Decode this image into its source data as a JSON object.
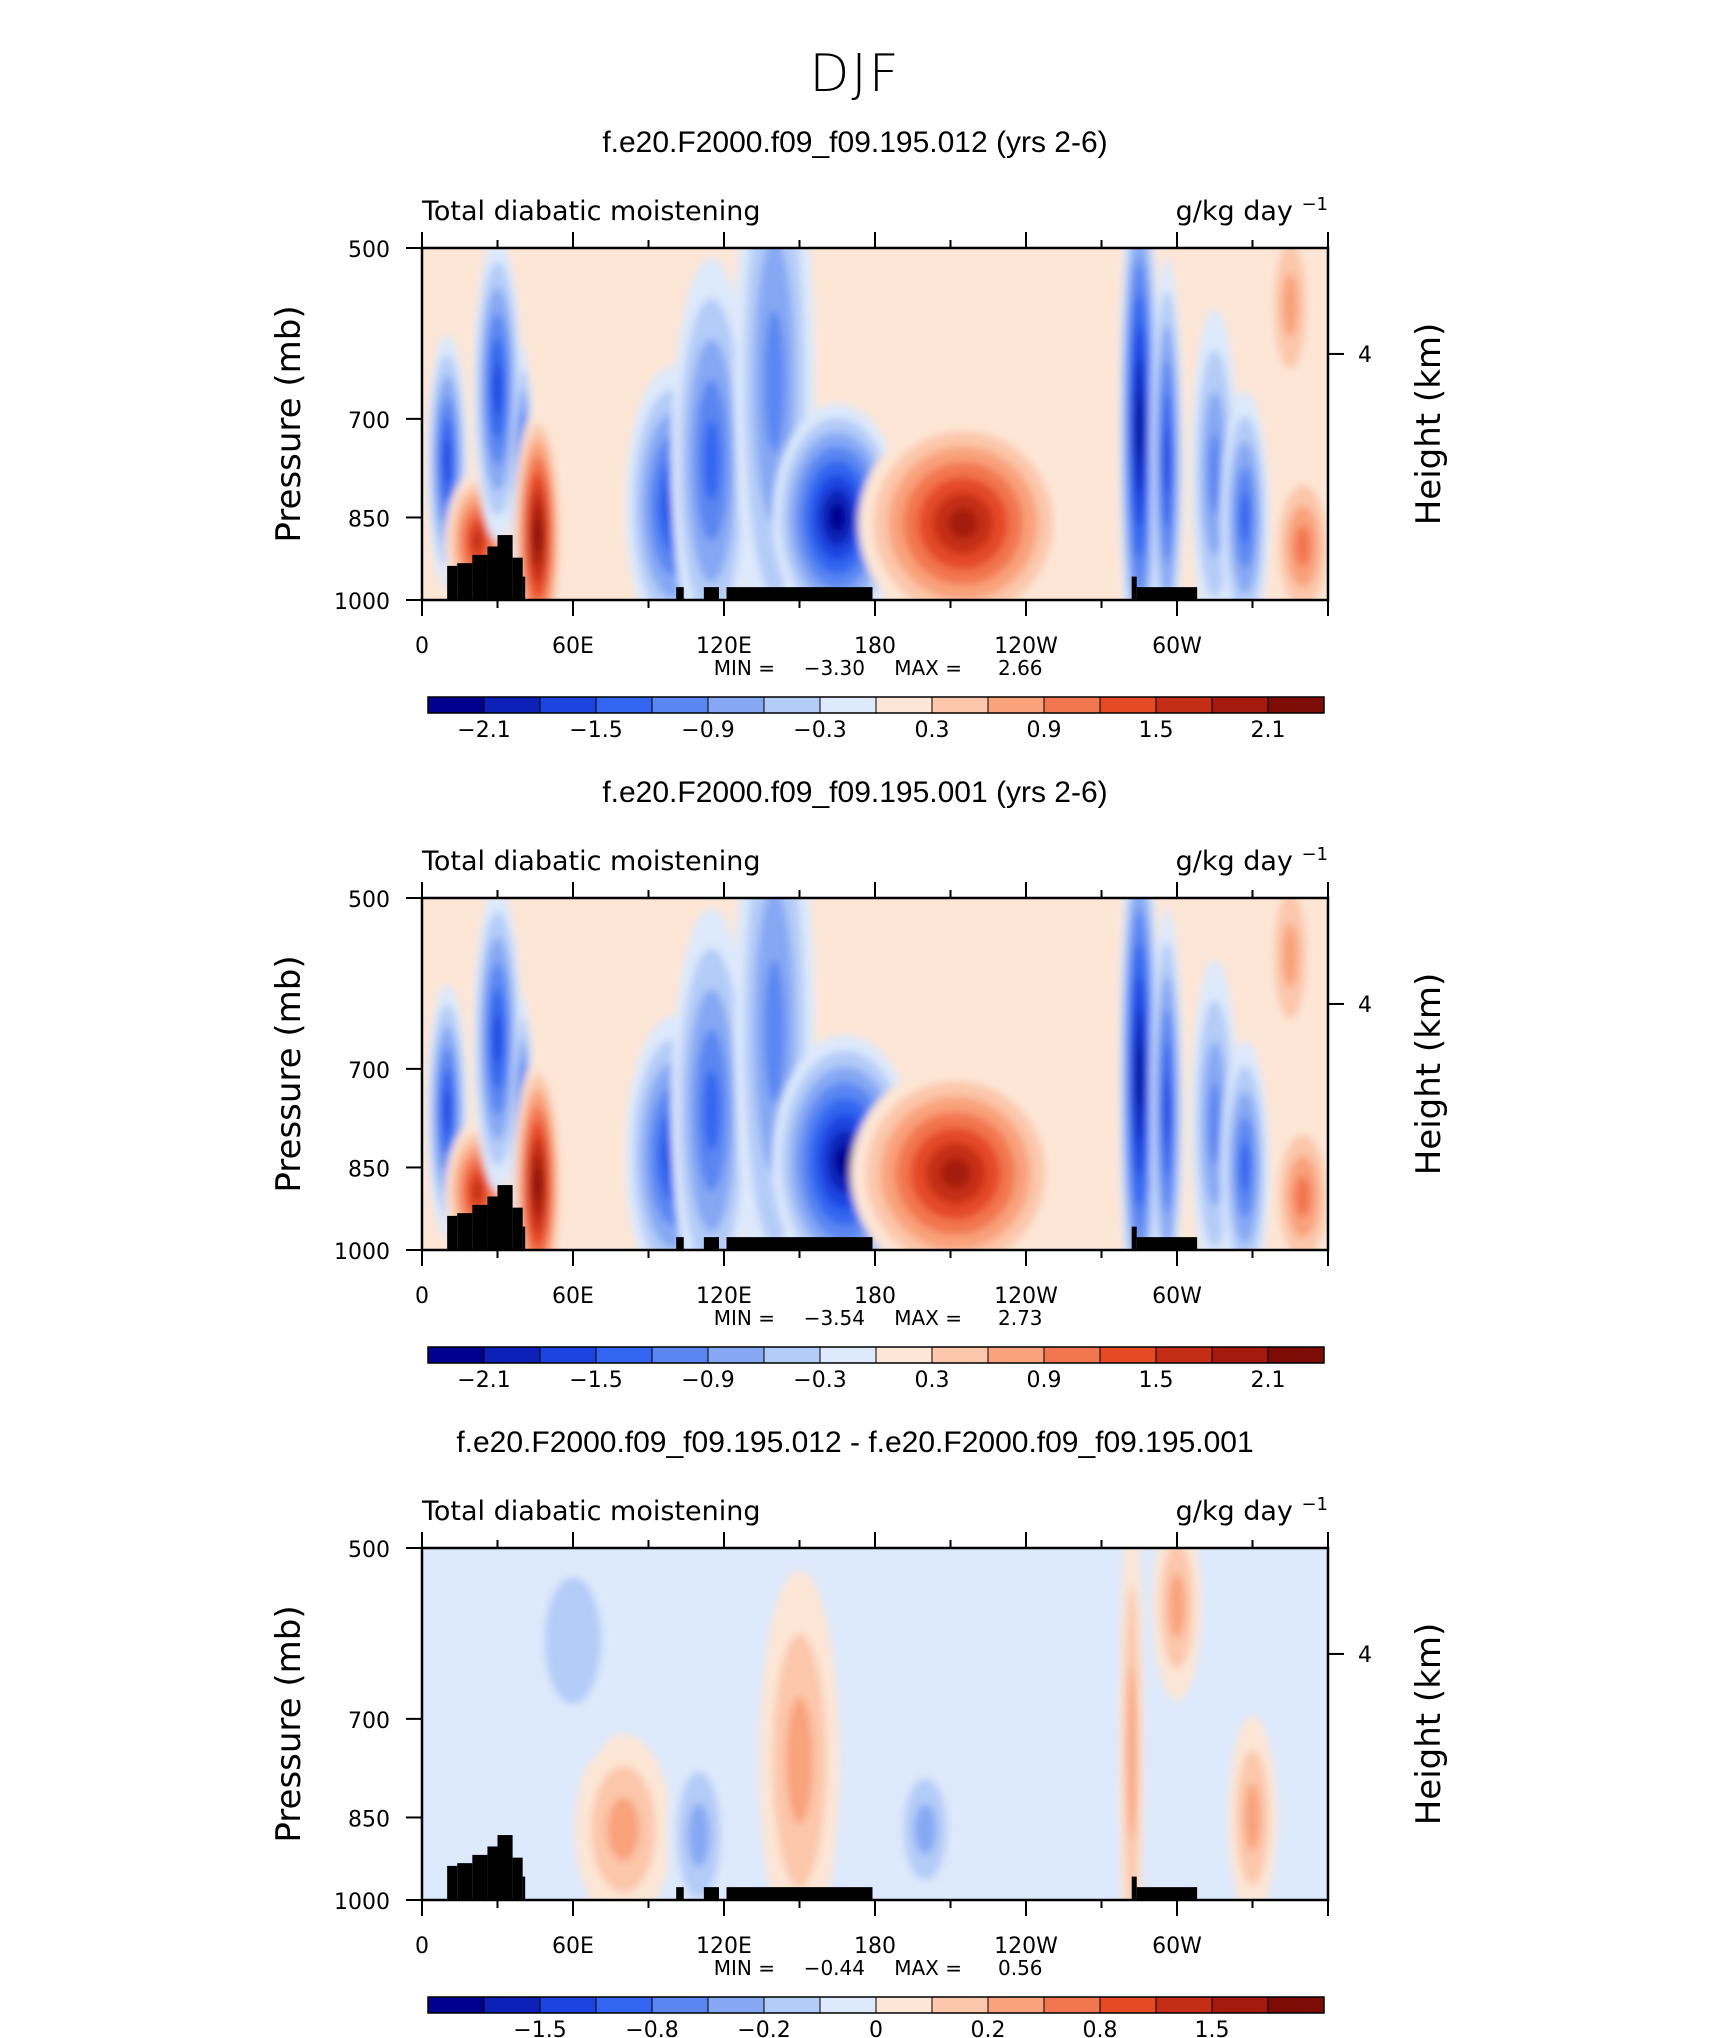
{
  "page": {
    "title": "DJF"
  },
  "colors": {
    "scale": [
      "#00008f",
      "#0d20b8",
      "#1c44e0",
      "#3366f0",
      "#5a86f2",
      "#86a8f4",
      "#b4ccf8",
      "#dde9fc",
      "#fde6d6",
      "#fcc7ab",
      "#f9a27c",
      "#f27650",
      "#e54a25",
      "#c52e16",
      "#a41a0c",
      "#7d0b06"
    ],
    "land": "#000000"
  },
  "chart_data": [
    {
      "type": "heatmap",
      "title": "f.e20.F2000.f09_f09.195.012 (yrs 2-6)",
      "left_label": "Total diabatic moistening",
      "units": "g/kg day",
      "units_sup": "−1",
      "ylabel": "Pressure (mb)",
      "ylabel_right": "Height (km)",
      "yticks": [
        "500",
        "700",
        "850",
        "1000"
      ],
      "yticks_right": [
        "4"
      ],
      "xticks": [
        "0",
        "60E",
        "120E",
        "180",
        "120W",
        "60W"
      ],
      "stats": {
        "min_label": "MIN =",
        "min": "−3.30",
        "max_label": "MAX =",
        "max": "2.66"
      },
      "colorbar": {
        "labels": [
          "−2.1",
          "−1.5",
          "−0.9",
          "−0.3",
          "0.3",
          "0.9",
          "1.5",
          "2.1"
        ]
      },
      "features": [
        {
          "lon": 10,
          "p": 760,
          "v": -1.6,
          "w": 5,
          "h": 200
        },
        {
          "lon": 22,
          "p": 890,
          "v": 1.7,
          "w": 8,
          "h": 110
        },
        {
          "lon": 30,
          "p": 660,
          "v": -1.7,
          "w": 6,
          "h": 240
        },
        {
          "lon": 40,
          "p": 850,
          "v": -2.2,
          "w": 3,
          "h": 270
        },
        {
          "lon": 46,
          "p": 880,
          "v": 2.3,
          "w": 6,
          "h": 200
        },
        {
          "lon": 100,
          "p": 830,
          "v": -1.6,
          "w": 12,
          "h": 220
        },
        {
          "lon": 115,
          "p": 760,
          "v": -1.3,
          "w": 10,
          "h": 320
        },
        {
          "lon": 140,
          "p": 650,
          "v": -1.0,
          "w": 10,
          "h": 450
        },
        {
          "lon": 165,
          "p": 850,
          "v": -2.3,
          "w": 16,
          "h": 180
        },
        {
          "lon": 215,
          "p": 860,
          "v": 1.9,
          "w": 26,
          "h": 170
        },
        {
          "lon": 285,
          "p": 710,
          "v": -2.6,
          "w": 5,
          "h": 420
        },
        {
          "lon": 296,
          "p": 760,
          "v": -1.6,
          "w": 4,
          "h": 320
        },
        {
          "lon": 315,
          "p": 780,
          "v": -1.2,
          "w": 6,
          "h": 260
        },
        {
          "lon": 327,
          "p": 850,
          "v": -1.3,
          "w": 6,
          "h": 200
        },
        {
          "lon": 350,
          "p": 900,
          "v": 1.0,
          "w": 8,
          "h": 130
        },
        {
          "lon": 345,
          "p": 560,
          "v": 0.6,
          "w": 6,
          "h": 150
        }
      ]
    },
    {
      "type": "heatmap",
      "title": "f.e20.F2000.f09_f09.195.001 (yrs 2-6)",
      "left_label": "Total diabatic moistening",
      "units": "g/kg day",
      "units_sup": "−1",
      "ylabel": "Pressure (mb)",
      "ylabel_right": "Height (km)",
      "yticks": [
        "500",
        "700",
        "850",
        "1000"
      ],
      "yticks_right": [
        "4"
      ],
      "xticks": [
        "0",
        "60E",
        "120E",
        "180",
        "120W",
        "60W"
      ],
      "stats": {
        "min_label": "MIN =",
        "min": "−3.54",
        "max_label": "MAX =",
        "max": "2.73"
      },
      "colorbar": {
        "labels": [
          "−2.1",
          "−1.5",
          "−0.9",
          "−0.3",
          "0.3",
          "0.9",
          "1.5",
          "2.1"
        ]
      },
      "features": [
        {
          "lon": 10,
          "p": 760,
          "v": -1.6,
          "w": 5,
          "h": 200
        },
        {
          "lon": 22,
          "p": 890,
          "v": 1.7,
          "w": 8,
          "h": 110
        },
        {
          "lon": 30,
          "p": 660,
          "v": -1.7,
          "w": 6,
          "h": 240
        },
        {
          "lon": 40,
          "p": 850,
          "v": -2.2,
          "w": 3,
          "h": 270
        },
        {
          "lon": 46,
          "p": 880,
          "v": 2.4,
          "w": 6,
          "h": 200
        },
        {
          "lon": 100,
          "p": 830,
          "v": -1.6,
          "w": 12,
          "h": 220
        },
        {
          "lon": 115,
          "p": 760,
          "v": -1.3,
          "w": 10,
          "h": 320
        },
        {
          "lon": 140,
          "p": 650,
          "v": -1.0,
          "w": 10,
          "h": 450
        },
        {
          "lon": 168,
          "p": 840,
          "v": -2.5,
          "w": 18,
          "h": 200
        },
        {
          "lon": 212,
          "p": 860,
          "v": 2.0,
          "w": 26,
          "h": 170
        },
        {
          "lon": 285,
          "p": 710,
          "v": -2.7,
          "w": 5,
          "h": 420
        },
        {
          "lon": 296,
          "p": 760,
          "v": -1.6,
          "w": 4,
          "h": 320
        },
        {
          "lon": 315,
          "p": 780,
          "v": -1.2,
          "w": 6,
          "h": 260
        },
        {
          "lon": 327,
          "p": 850,
          "v": -1.3,
          "w": 6,
          "h": 200
        },
        {
          "lon": 350,
          "p": 900,
          "v": 1.0,
          "w": 8,
          "h": 130
        },
        {
          "lon": 345,
          "p": 560,
          "v": 0.6,
          "w": 6,
          "h": 150
        }
      ]
    },
    {
      "type": "heatmap",
      "title": "f.e20.F2000.f09_f09.195.012 - f.e20.F2000.f09_f09.195.001",
      "left_label": "Total diabatic moistening",
      "units": "g/kg day",
      "units_sup": "−1",
      "ylabel": "Pressure (mb)",
      "ylabel_right": "Height (km)",
      "yticks": [
        "500",
        "700",
        "850",
        "1000"
      ],
      "yticks_right": [
        "4"
      ],
      "xticks": [
        "0",
        "60E",
        "120E",
        "180",
        "120W",
        "60W"
      ],
      "stats": {
        "min_label": "MIN =",
        "min": "−0.44",
        "max_label": "MAX =",
        "max": "0.56"
      },
      "colorbar": {
        "labels": [
          "−1.5",
          "−0.8",
          "−0.2",
          "0",
          "0.2",
          "0.8",
          "1.5"
        ]
      },
      "features": [
        {
          "lon": 80,
          "p": 870,
          "v": 0.25,
          "w": 12,
          "h": 150
        },
        {
          "lon": 150,
          "p": 760,
          "v": 0.3,
          "w": 10,
          "h": 300
        },
        {
          "lon": 110,
          "p": 880,
          "v": -0.2,
          "w": 8,
          "h": 150
        },
        {
          "lon": 200,
          "p": 870,
          "v": -0.2,
          "w": 8,
          "h": 120
        },
        {
          "lon": 60,
          "p": 600,
          "v": -0.1,
          "w": 14,
          "h": 200
        },
        {
          "lon": 330,
          "p": 850,
          "v": 0.25,
          "w": 6,
          "h": 160
        },
        {
          "lon": 282,
          "p": 750,
          "v": 0.3,
          "w": 3,
          "h": 400
        },
        {
          "lon": 300,
          "p": 560,
          "v": 0.2,
          "w": 6,
          "h": 150
        }
      ]
    }
  ]
}
